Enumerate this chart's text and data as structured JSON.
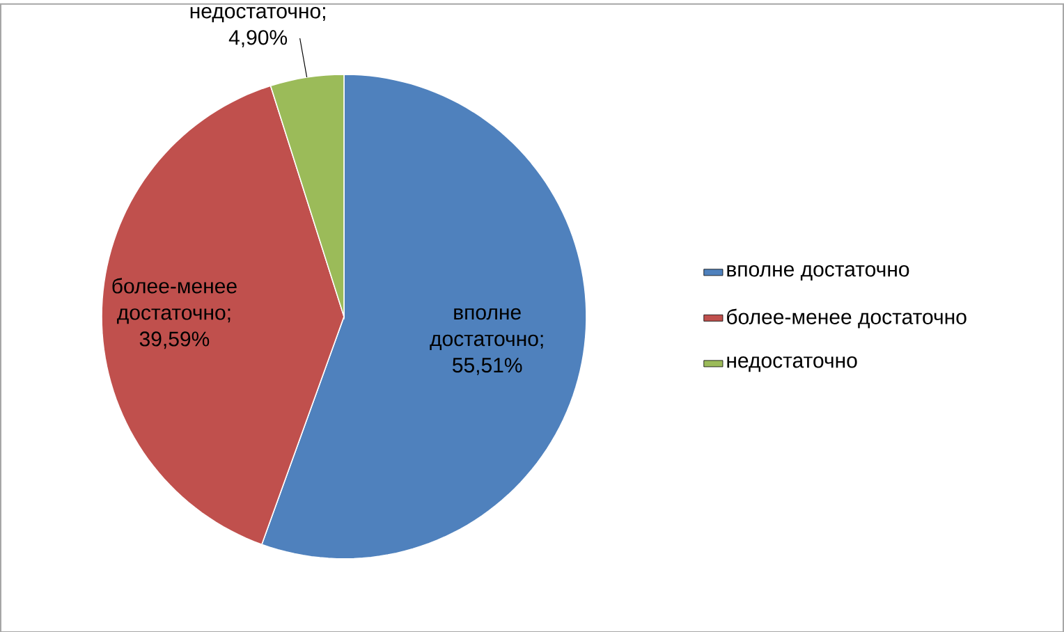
{
  "chart_data": {
    "type": "pie",
    "categories": [
      "вполне достаточно",
      "более-менее достаточно",
      "недостаточно"
    ],
    "values": [
      55.51,
      39.59,
      4.9
    ],
    "colors": [
      "#4f81bd",
      "#c0504d",
      "#9bbb59"
    ],
    "value_labels": [
      "вполне достаточно; 55,51%",
      "более-менее достаточно; 39,59%",
      "недостаточно; 4,90%"
    ],
    "legend": "right"
  }
}
